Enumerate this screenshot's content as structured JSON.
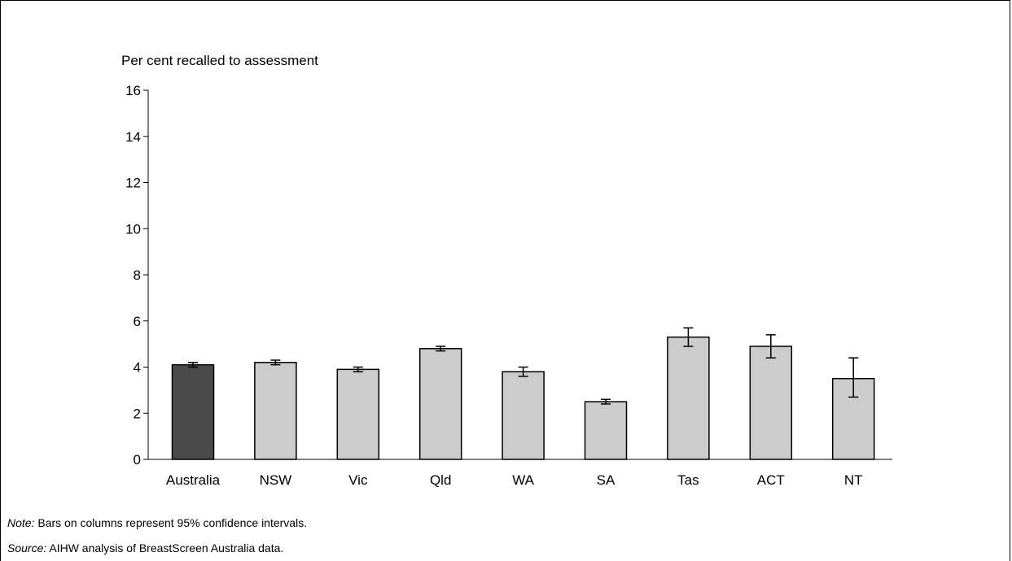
{
  "chart_data": {
    "type": "bar",
    "ylabel": "Per cent recalled to assessment",
    "ylim": [
      0,
      16
    ],
    "yticks": [
      0,
      2,
      4,
      6,
      8,
      10,
      12,
      14,
      16
    ],
    "categories": [
      "Australia",
      "NSW",
      "Vic",
      "Qld",
      "WA",
      "SA",
      "Tas",
      "ACT",
      "NT"
    ],
    "values": [
      4.1,
      4.2,
      3.9,
      4.8,
      3.8,
      2.5,
      5.3,
      4.9,
      3.5
    ],
    "ci_lower": [
      4.0,
      4.1,
      3.8,
      4.7,
      3.6,
      2.4,
      4.9,
      4.4,
      2.7
    ],
    "ci_upper": [
      4.2,
      4.3,
      4.0,
      4.9,
      4.0,
      2.6,
      5.7,
      5.4,
      4.4
    ],
    "bar_colors": [
      "#4a4a4a",
      "#cccccc",
      "#cccccc",
      "#cccccc",
      "#cccccc",
      "#cccccc",
      "#cccccc",
      "#cccccc",
      "#cccccc"
    ],
    "grid": false,
    "legend": "none"
  },
  "footnotes": {
    "note_label": "Note:",
    "note_text": " Bars on columns represent 95% confidence intervals.",
    "source_label": "Source:",
    "source_text": " AIHW analysis of BreastScreen Australia data."
  }
}
